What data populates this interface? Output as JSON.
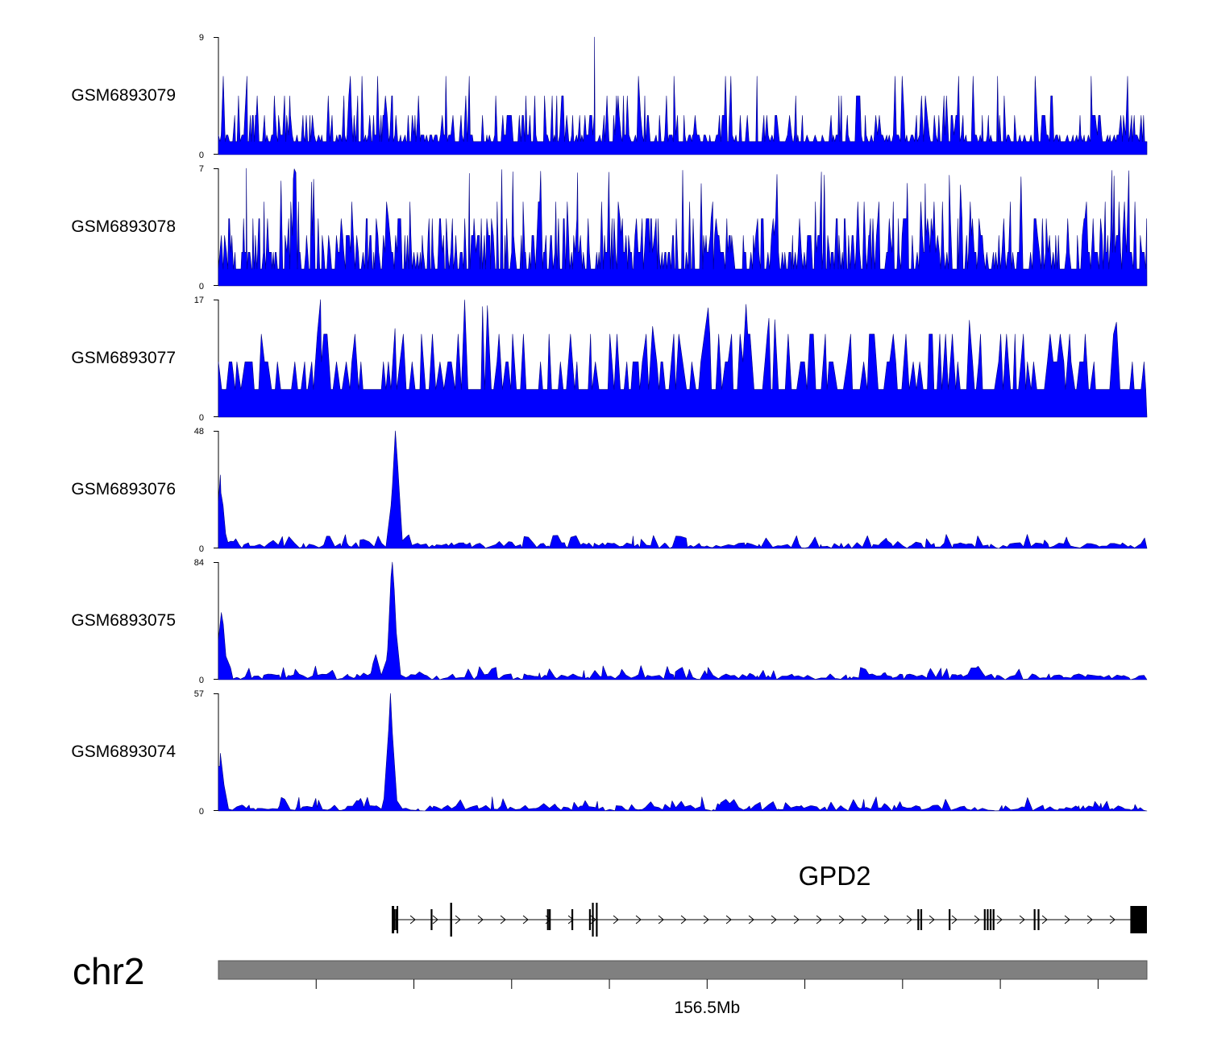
{
  "colors": {
    "signal": "#0000ff",
    "signal_edge": "#000080",
    "ideogram": "#808080",
    "gene": "#000000"
  },
  "chart_data": {
    "type": "area",
    "title": "",
    "region": {
      "chromosome": "chr2",
      "start_mb": 156.45,
      "end_mb": 156.545
    },
    "tracks": [
      {
        "name": "GSM6893079",
        "ymin": "0",
        "ymax": "9",
        "profile": "flat_noise",
        "seed": 79,
        "max_value": 9
      },
      {
        "name": "GSM6893078",
        "ymin": "0",
        "ymax": "7",
        "profile": "dense_noise",
        "seed": 78,
        "max_value": 7
      },
      {
        "name": "GSM6893077",
        "ymin": "0",
        "ymax": "17",
        "profile": "sparse_noise",
        "seed": 77,
        "max_value": 17
      },
      {
        "name": "GSM6893076",
        "ymin": "0",
        "ymax": "48",
        "profile": "peaks",
        "seed": 76,
        "max_value": 48,
        "peaks": [
          {
            "pos_mb": 156.4502,
            "height": 30
          },
          {
            "pos_mb": 156.4681,
            "height": 48
          }
        ]
      },
      {
        "name": "GSM6893075",
        "ymin": "0",
        "ymax": "84",
        "profile": "peaks",
        "seed": 75,
        "max_value": 84,
        "peaks": [
          {
            "pos_mb": 156.4503,
            "height": 48
          },
          {
            "pos_mb": 156.4678,
            "height": 84
          },
          {
            "pos_mb": 156.4661,
            "height": 18
          }
        ]
      },
      {
        "name": "GSM6893074",
        "ymin": "0",
        "ymax": "57",
        "profile": "peaks",
        "seed": 74,
        "max_value": 57,
        "peaks": [
          {
            "pos_mb": 156.4502,
            "height": 28
          },
          {
            "pos_mb": 156.4676,
            "height": 57
          }
        ]
      }
    ],
    "gene": {
      "name": "GPD2",
      "strand": "+",
      "start_mb": 156.4679,
      "end_mb": 156.545,
      "exons_mb": [
        156.468,
        156.4682,
        156.4718,
        156.4738,
        156.4738,
        156.4837,
        156.4839,
        156.4862,
        156.488,
        156.4883,
        156.4887,
        156.5216,
        156.5219,
        156.5248,
        156.5284,
        156.5287,
        156.529,
        156.5293,
        156.5335,
        156.5339
      ],
      "last_exon_mb": [
        156.5433,
        156.545
      ]
    },
    "axis": {
      "chromosome_label": "chr2",
      "tick_label": "156.5Mb",
      "tick_label_mb": 156.5,
      "ticks_mb": [
        156.46,
        156.47,
        156.48,
        156.49,
        156.5,
        156.51,
        156.52,
        156.53,
        156.54
      ]
    }
  }
}
